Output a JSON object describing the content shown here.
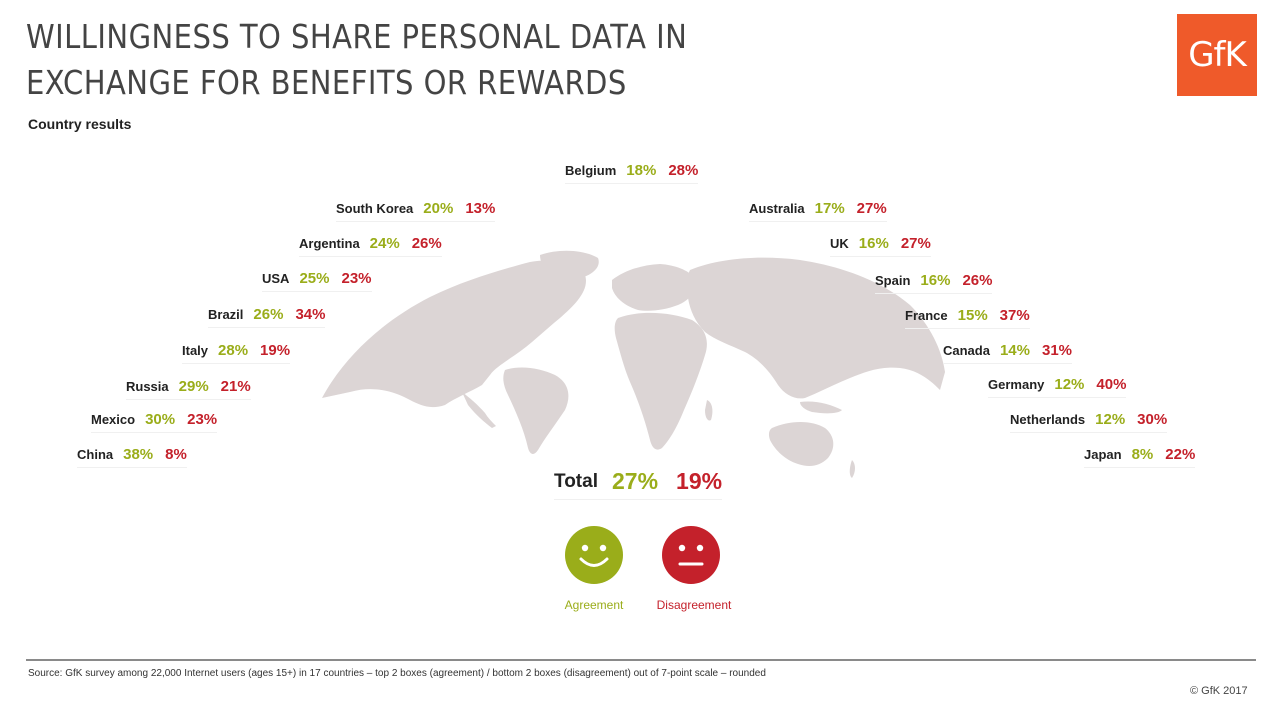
{
  "header": {
    "title_line1": "WILLINGNESS TO SHARE PERSONAL DATA IN",
    "title_line2": "EXCHANGE FOR BENEFITS OR REWARDS",
    "subtitle": "Country results",
    "logo_text": "GfK"
  },
  "colors": {
    "agreement": "#9aad1a",
    "disagreement": "#c4212b",
    "map": "#d9d2d2",
    "logo": "#ef5a2a"
  },
  "chart_data": {
    "type": "table",
    "title": "WILLINGNESS TO SHARE PERSONAL DATA IN EXCHANGE FOR BENEFITS OR REWARDS",
    "subtitle": "Country results",
    "columns": [
      "Agreement",
      "Disagreement"
    ],
    "rows": [
      {
        "country": "Belgium",
        "agreement": "18%",
        "disagreement": "28%"
      },
      {
        "country": "South Korea",
        "agreement": "20%",
        "disagreement": "13%"
      },
      {
        "country": "Argentina",
        "agreement": "24%",
        "disagreement": "26%"
      },
      {
        "country": "USA",
        "agreement": "25%",
        "disagreement": "23%"
      },
      {
        "country": "Brazil",
        "agreement": "26%",
        "disagreement": "34%"
      },
      {
        "country": "Italy",
        "agreement": "28%",
        "disagreement": "19%"
      },
      {
        "country": "Russia",
        "agreement": "29%",
        "disagreement": "21%"
      },
      {
        "country": "Mexico",
        "agreement": "30%",
        "disagreement": "23%"
      },
      {
        "country": "China",
        "agreement": "38%",
        "disagreement": "8%"
      },
      {
        "country": "Australia",
        "agreement": "17%",
        "disagreement": "27%"
      },
      {
        "country": "UK",
        "agreement": "16%",
        "disagreement": "27%"
      },
      {
        "country": "Spain",
        "agreement": "16%",
        "disagreement": "26%"
      },
      {
        "country": "France",
        "agreement": "15%",
        "disagreement": "37%"
      },
      {
        "country": "Canada",
        "agreement": "14%",
        "disagreement": "31%"
      },
      {
        "country": "Germany",
        "agreement": "12%",
        "disagreement": "40%"
      },
      {
        "country": "Netherlands",
        "agreement": "12%",
        "disagreement": "30%"
      },
      {
        "country": "Japan",
        "agreement": "8%",
        "disagreement": "22%"
      }
    ],
    "total": {
      "label": "Total",
      "agreement": "27%",
      "disagreement": "19%"
    }
  },
  "legend": {
    "agreement_label": "Agreement",
    "disagreement_label": "Disagreement",
    "agreement_icon": "smiley-face-icon",
    "disagreement_icon": "neutral-face-icon"
  },
  "footer": {
    "source": "Source: GfK survey among 22,000 Internet users (ages 15+) in 17 countries –  top 2 boxes (agreement) / bottom 2 boxes (disagreement) out of 7-point scale – rounded",
    "copyright": "© GfK 2017"
  }
}
